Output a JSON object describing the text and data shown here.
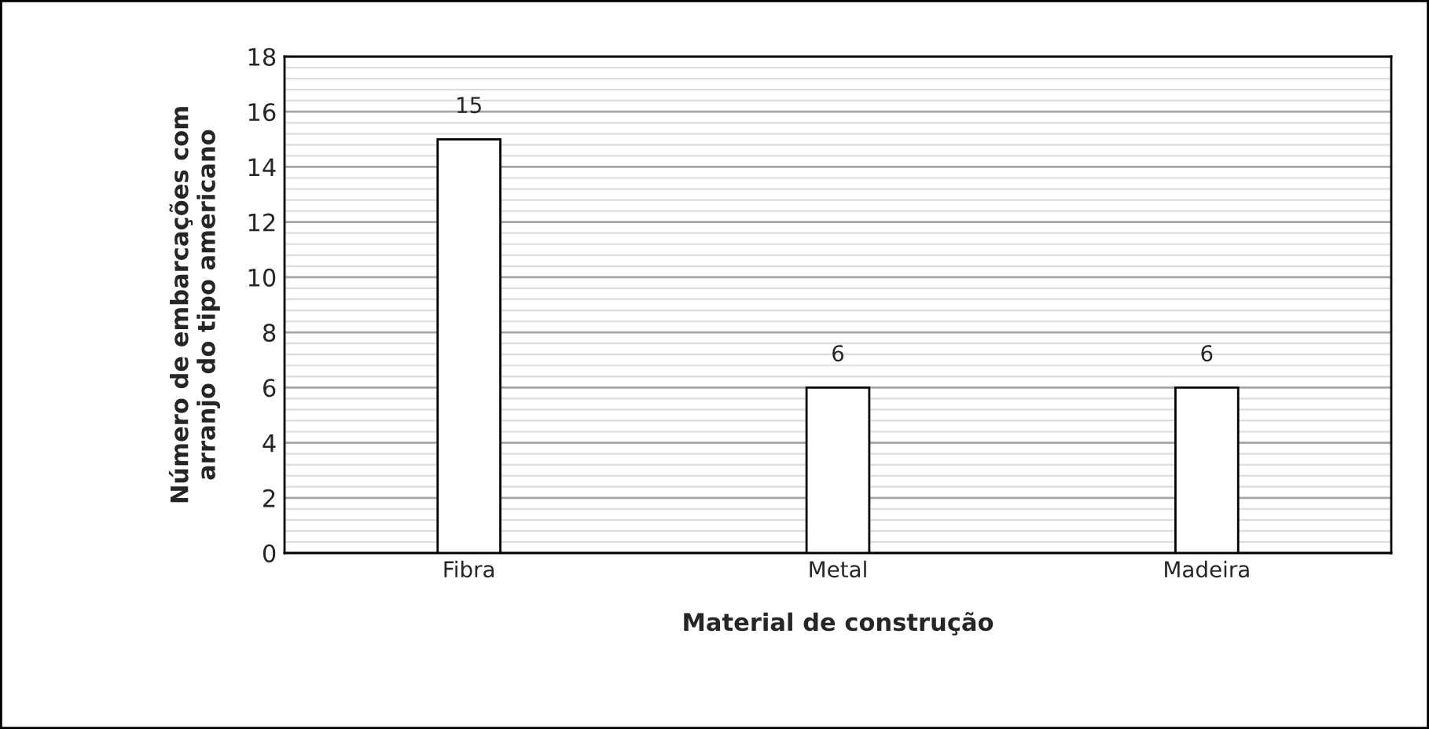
{
  "chart_data": {
    "type": "bar",
    "xlabel": "Material de construção",
    "ylabel": "Número de embarcações com\narranjo do tipo americano",
    "categories": [
      "Fibra",
      "Metal",
      "Madeira"
    ],
    "values": [
      15,
      6,
      6
    ],
    "color": "#ffffff",
    "ylim": [
      0,
      18
    ],
    "yticks": [
      0,
      2,
      4,
      6,
      8,
      10,
      12,
      14,
      16,
      18
    ],
    "grid": "y",
    "data_labels": true
  }
}
